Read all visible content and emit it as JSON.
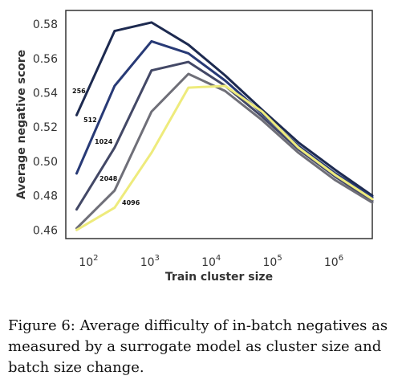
{
  "chart_data": {
    "type": "line",
    "xlabel": "Train cluster size",
    "ylabel": "Average negative score",
    "xscale": "log",
    "xlim": [
      40,
      4000000
    ],
    "ylim": [
      0.455,
      0.588
    ],
    "grid": false,
    "legend": "none",
    "xticks": [
      {
        "value": 100,
        "base": "10",
        "exp": "2"
      },
      {
        "value": 1000,
        "base": "10",
        "exp": "3"
      },
      {
        "value": 10000,
        "base": "10",
        "exp": "4"
      },
      {
        "value": 100000,
        "base": "10",
        "exp": "5"
      },
      {
        "value": 1000000,
        "base": "10",
        "exp": "6"
      }
    ],
    "yticks": [
      "0.46",
      "0.48",
      "0.50",
      "0.52",
      "0.54",
      "0.56",
      "0.58"
    ],
    "x": [
      60,
      250,
      1000,
      4000,
      16000,
      64000,
      250000,
      1000000,
      4000000
    ],
    "series": [
      {
        "name": "256",
        "color": "#1d2a50",
        "values": [
          0.527,
          0.576,
          0.581,
          0.568,
          0.55,
          0.53,
          0.511,
          0.495,
          0.48
        ]
      },
      {
        "name": "512",
        "color": "#283a76",
        "values": [
          0.493,
          0.544,
          0.57,
          0.563,
          0.547,
          0.528,
          0.509,
          0.493,
          0.479
        ]
      },
      {
        "name": "1024",
        "color": "#434866",
        "values": [
          0.472,
          0.508,
          0.553,
          0.558,
          0.544,
          0.526,
          0.507,
          0.491,
          0.477
        ]
      },
      {
        "name": "2048",
        "color": "#6f6f78",
        "values": [
          0.461,
          0.483,
          0.529,
          0.551,
          0.541,
          0.524,
          0.505,
          0.489,
          0.476
        ]
      },
      {
        "name": "4096",
        "color": "#eeeb7c",
        "values": [
          0.46,
          0.473,
          0.505,
          0.543,
          0.544,
          0.529,
          0.508,
          0.492,
          0.478
        ]
      }
    ]
  },
  "caption": {
    "text": "Figure 6: Average difficulty of in-batch negatives as measured by a surrogate model as cluster size and batch size change."
  }
}
